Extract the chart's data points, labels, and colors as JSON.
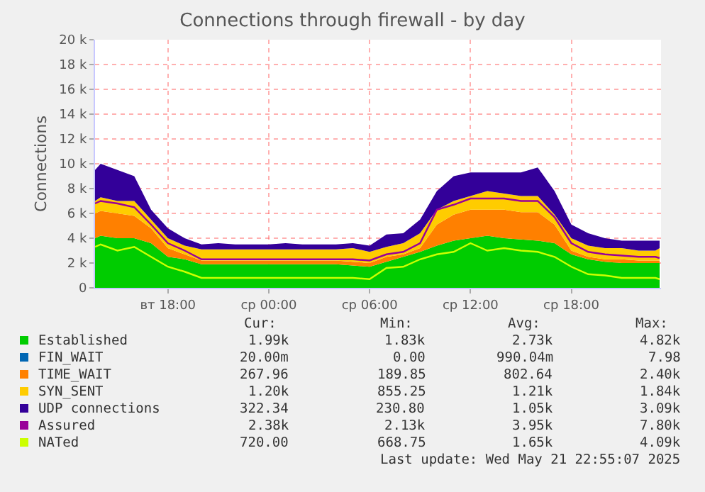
{
  "chart_data": {
    "type": "area",
    "title": "Connections through firewall - by day",
    "ylabel": "Connections",
    "stacked": true,
    "legend": "bottom",
    "grid": true,
    "marker": "none",
    "line_style": "solid",
    "x": [
      "2025-05-20T13:40",
      "2025-05-20T14:00",
      "2025-05-20T15:00",
      "2025-05-20T16:00",
      "2025-05-20T17:00",
      "2025-05-20T18:00",
      "2025-05-20T19:00",
      "2025-05-20T20:00",
      "2025-05-20T21:00",
      "2025-05-20T22:00",
      "2025-05-20T23:00",
      "2025-05-21T00:00",
      "2025-05-21T01:00",
      "2025-05-21T02:00",
      "2025-05-21T03:00",
      "2025-05-21T04:00",
      "2025-05-21T05:00",
      "2025-05-21T06:00",
      "2025-05-21T07:00",
      "2025-05-21T08:00",
      "2025-05-21T09:00",
      "2025-05-21T10:00",
      "2025-05-21T11:00",
      "2025-05-21T12:00",
      "2025-05-21T13:00",
      "2025-05-21T14:00",
      "2025-05-21T15:00",
      "2025-05-21T16:00",
      "2025-05-21T17:00",
      "2025-05-21T18:00",
      "2025-05-21T19:00",
      "2025-05-21T20:00",
      "2025-05-21T21:00",
      "2025-05-21T22:00",
      "2025-05-21T23:00",
      "2025-05-21T23:15"
    ],
    "series": [
      {
        "name": "Established",
        "color": "#00cc00",
        "values": [
          4000,
          4200,
          4000,
          4000,
          3600,
          2500,
          2300,
          1900,
          1900,
          1900,
          1900,
          1900,
          1900,
          1900,
          1900,
          1900,
          1800,
          1700,
          2100,
          2500,
          2900,
          3400,
          3800,
          4000,
          4200,
          4000,
          3900,
          3800,
          3600,
          2700,
          2300,
          2100,
          2000,
          2000,
          2000,
          2000
        ]
      },
      {
        "name": "FIN_WAIT",
        "color": "#0066b3",
        "values": [
          null,
          null,
          null,
          null,
          null,
          null,
          null,
          null,
          null,
          null,
          null,
          null,
          null,
          null,
          null,
          null,
          null,
          null,
          null,
          null,
          null,
          null,
          null,
          null,
          null,
          null,
          null,
          null,
          null,
          null,
          null,
          null,
          null,
          null,
          null,
          null
        ]
      },
      {
        "name": "TIME_WAIT",
        "color": "#ff8000",
        "values": [
          2000,
          2000,
          2000,
          1800,
          1200,
          700,
          400,
          300,
          300,
          300,
          300,
          300,
          300,
          300,
          300,
          300,
          300,
          300,
          400,
          200,
          300,
          1700,
          2100,
          2300,
          2100,
          2300,
          2200,
          2300,
          1500,
          300,
          200,
          200,
          300,
          200,
          200,
          200
        ]
      },
      {
        "name": "SYN_SENT",
        "color": "#ffcc00",
        "values": [
          1000,
          1100,
          1000,
          1200,
          700,
          800,
          700,
          900,
          900,
          900,
          900,
          900,
          900,
          900,
          900,
          900,
          1100,
          900,
          800,
          900,
          1200,
          1200,
          1100,
          1100,
          1500,
          1300,
          1300,
          1300,
          800,
          1000,
          900,
          900,
          900,
          800,
          800,
          1000
        ]
      },
      {
        "name": "UDP connections",
        "color": "#330099",
        "values": [
          2500,
          2700,
          2500,
          2000,
          800,
          800,
          600,
          400,
          500,
          400,
          400,
          400,
          500,
          400,
          400,
          400,
          400,
          500,
          1000,
          800,
          1100,
          1500,
          2000,
          1900,
          1500,
          1700,
          1900,
          2300,
          1900,
          1100,
          1000,
          800,
          600,
          800,
          800,
          600
        ]
      },
      {
        "name": "Assured",
        "color": "#990099",
        "type": "line",
        "values": [
          6800,
          7000,
          6800,
          6500,
          5100,
          3600,
          3000,
          2300,
          2300,
          2300,
          2300,
          2300,
          2300,
          2300,
          2300,
          2300,
          2300,
          2200,
          2700,
          2900,
          3600,
          6300,
          6700,
          7200,
          7200,
          7200,
          7000,
          7000,
          5700,
          3600,
          2900,
          2700,
          2600,
          2500,
          2500,
          2400
        ]
      },
      {
        "name": "NATed",
        "color": "#ccff00",
        "type": "line",
        "values": [
          3300,
          3500,
          3000,
          3300,
          2500,
          1700,
          1300,
          800,
          800,
          800,
          800,
          800,
          800,
          800,
          800,
          800,
          800,
          700,
          1600,
          1700,
          2300,
          2700,
          2900,
          3600,
          3000,
          3200,
          3000,
          2900,
          2500,
          1700,
          1100,
          1000,
          800,
          800,
          800,
          700
        ]
      }
    ],
    "xlim": [
      "2025-05-20T13:40",
      "2025-05-21T23:20"
    ],
    "xticks": [
      {
        "value": "2025-05-20T18:00",
        "label": "вт 18:00"
      },
      {
        "value": "2025-05-21T00:00",
        "label": "ср 00:00"
      },
      {
        "value": "2025-05-21T06:00",
        "label": "ср 06:00"
      },
      {
        "value": "2025-05-21T12:00",
        "label": "ср 12:00"
      },
      {
        "value": "2025-05-21T18:00",
        "label": "ср 18:00"
      }
    ],
    "ylim": [
      0,
      20000
    ],
    "yticks": [
      0,
      {
        "value": 2000,
        "label": "2 k"
      },
      {
        "value": 4000,
        "label": "4 k"
      },
      {
        "value": 6000,
        "label": "6 k"
      },
      {
        "value": 8000,
        "label": "8 k"
      },
      {
        "value": 10000,
        "label": "10 k"
      },
      {
        "value": 12000,
        "label": "12 k"
      },
      {
        "value": 14000,
        "label": "14 k"
      },
      {
        "value": 16000,
        "label": "16 k"
      },
      {
        "value": 18000,
        "label": "18 k"
      },
      {
        "value": 20000,
        "label": "20 k"
      }
    ],
    "annotations": [
      "Cur:",
      "Min:",
      "Avg:",
      "Max:",
      "1.99k",
      "1.83k",
      "2.73k",
      "4.82k",
      "20.00m",
      "0.00",
      "990.04m",
      "7.98",
      "267.96",
      "189.85",
      "802.64",
      "2.40k",
      "1.20k",
      "855.25",
      "1.21k",
      "1.84k",
      "322.34",
      "230.80",
      "1.05k",
      "3.09k",
      "2.38k",
      "2.13k",
      "3.95k",
      "7.80k",
      "720.00",
      "668.75",
      "1.65k",
      "4.09k",
      "Last update: Wed May 21 22:55:07 2025"
    ]
  }
}
